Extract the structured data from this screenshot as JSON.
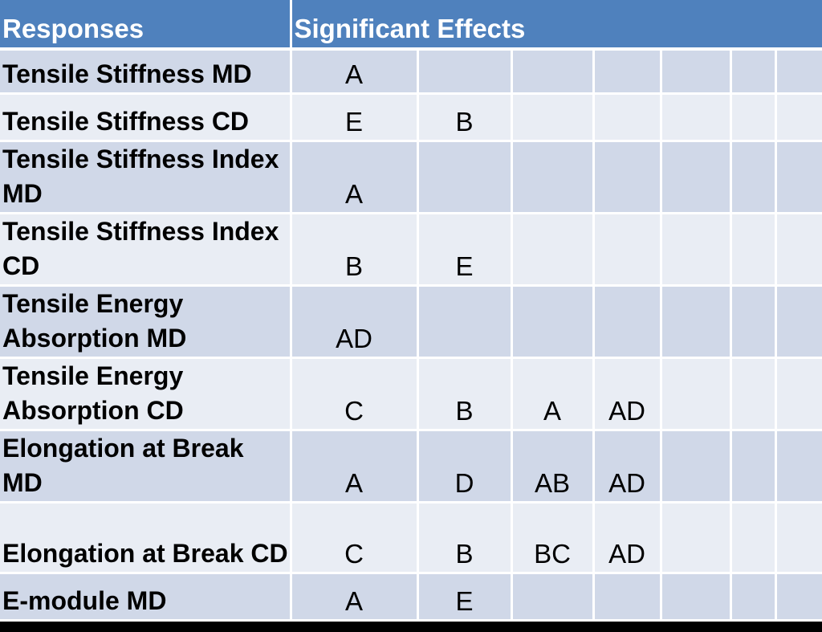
{
  "header": {
    "responses": "Responses",
    "effects": "Significant Effects"
  },
  "rows": [
    {
      "response": "Tensile Stiffness MD",
      "effects": [
        "A",
        "",
        "",
        "",
        "",
        "",
        ""
      ]
    },
    {
      "response": "Tensile Stiffness CD",
      "effects": [
        "E",
        "B",
        "",
        "",
        "",
        "",
        ""
      ]
    },
    {
      "response": "Tensile Stiffness Index MD",
      "effects": [
        "A",
        "",
        "",
        "",
        "",
        "",
        ""
      ]
    },
    {
      "response": "Tensile Stiffness Index CD",
      "effects": [
        "B",
        "E",
        "",
        "",
        "",
        "",
        ""
      ]
    },
    {
      "response": "Tensile Energy Absorption MD",
      "effects": [
        "AD",
        "",
        "",
        "",
        "",
        "",
        ""
      ]
    },
    {
      "response": "Tensile Energy Absorption CD",
      "effects": [
        "C",
        "B",
        "A",
        "AD",
        "",
        "",
        ""
      ]
    },
    {
      "response": "Elongation at Break MD",
      "effects": [
        "A",
        "D",
        "AB",
        "AD",
        "",
        "",
        ""
      ]
    },
    {
      "response": "Elongation at Break CD",
      "effects": [
        "C",
        "B",
        "BC",
        "AD",
        "",
        "",
        ""
      ]
    },
    {
      "response": "E-module MD",
      "effects": [
        "A",
        "E",
        "",
        "",
        "",
        "",
        ""
      ]
    }
  ],
  "colors": {
    "header_bg": "#4f81bd",
    "row_dark": "#d0d8e8",
    "row_light": "#e9edf4"
  }
}
